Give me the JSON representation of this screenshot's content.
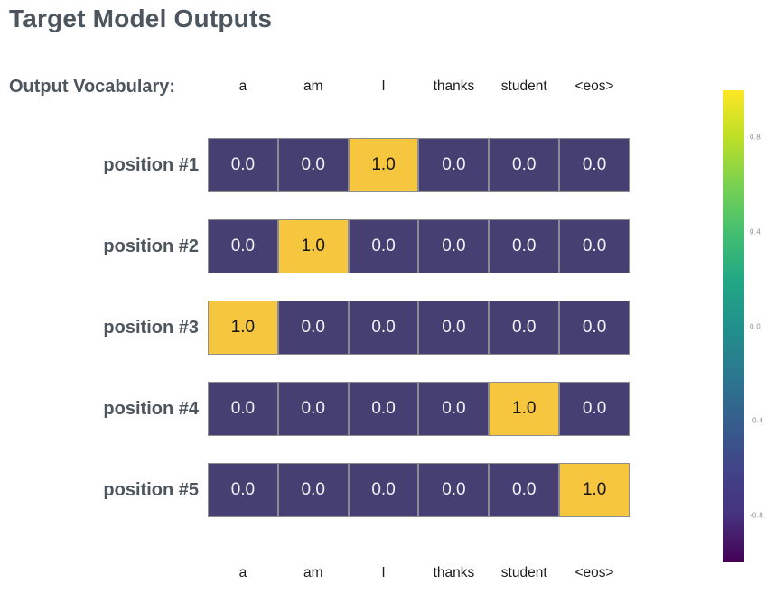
{
  "title": "Target Model Outputs",
  "vocab_label": "Output Vocabulary:",
  "colors": {
    "background": "#ffffff",
    "title_color": "#4d565e",
    "label_color": "#4d565e",
    "header_color": "#1c1c1c",
    "tick_color": "#8d8d8d",
    "cell_low": "#453f72",
    "cell_high": "#f6c63f",
    "text_low": "#f2f2f7",
    "text_high": "#141414",
    "grid_border": "#8c8c8c",
    "cell_divider": "#8b8b97"
  },
  "chart_data": {
    "type": "heatmap",
    "title": "Target Model Outputs",
    "columns": [
      "a",
      "am",
      "I",
      "thanks",
      "student",
      "<eos>"
    ],
    "rows": [
      {
        "label": "position #1",
        "values": [
          0.0,
          0.0,
          1.0,
          0.0,
          0.0,
          0.0
        ]
      },
      {
        "label": "position #2",
        "values": [
          0.0,
          1.0,
          0.0,
          0.0,
          0.0,
          0.0
        ]
      },
      {
        "label": "position #3",
        "values": [
          1.0,
          0.0,
          0.0,
          0.0,
          0.0,
          0.0
        ]
      },
      {
        "label": "position #4",
        "values": [
          0.0,
          0.0,
          0.0,
          0.0,
          1.0,
          0.0
        ]
      },
      {
        "label": "position #5",
        "values": [
          0.0,
          0.0,
          0.0,
          0.0,
          0.0,
          1.0
        ]
      }
    ],
    "value_format": "one_decimal",
    "colorbar": {
      "colormap": "viridis",
      "min": -1.0,
      "max": 1.0,
      "ticks": [
        "0.8",
        "0.4",
        "0.0",
        "-0.4",
        "-0.8"
      ],
      "gradient_top_to_bottom": [
        "#fde725",
        "#bddf26",
        "#7ad151",
        "#44bf70",
        "#22a884",
        "#21918c",
        "#2a788e",
        "#355f8d",
        "#414487",
        "#46327e",
        "#440154"
      ]
    }
  }
}
